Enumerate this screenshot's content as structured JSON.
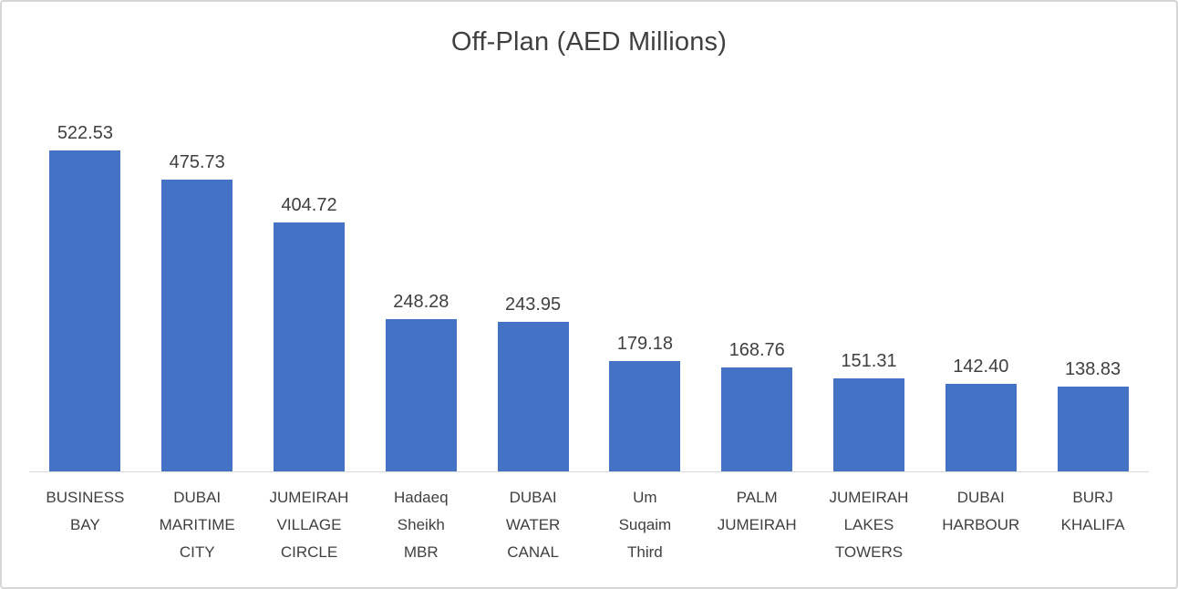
{
  "chart_data": {
    "type": "bar",
    "title": "Off-Plan (AED Millions)",
    "categories": [
      "BUSINESS BAY",
      "DUBAI MARITIME CITY",
      "JUMEIRAH VILLAGE CIRCLE",
      "Hadaeq Sheikh MBR",
      "DUBAI WATER CANAL",
      "Um Suqaim Third",
      "PALM JUMEIRAH",
      "JUMEIRAH LAKES TOWERS",
      "DUBAI HARBOUR",
      "BURJ KHALIFA"
    ],
    "category_lines": [
      [
        "BUSINESS",
        "BAY"
      ],
      [
        "DUBAI",
        "MARITIME",
        "CITY"
      ],
      [
        "JUMEIRAH",
        "VILLAGE",
        "CIRCLE"
      ],
      [
        "Hadaeq",
        "Sheikh",
        "MBR"
      ],
      [
        "DUBAI",
        "WATER",
        "CANAL"
      ],
      [
        "Um",
        "Suqaim",
        "Third"
      ],
      [
        "PALM",
        "JUMEIRAH"
      ],
      [
        "JUMEIRAH",
        "LAKES",
        "TOWERS"
      ],
      [
        "DUBAI",
        "HARBOUR"
      ],
      [
        "BURJ",
        "KHALIFA"
      ]
    ],
    "values": [
      522.53,
      475.73,
      404.72,
      248.28,
      243.95,
      179.18,
      168.76,
      151.31,
      142.4,
      138.83
    ],
    "value_labels": [
      "522.53",
      "475.73",
      "404.72",
      "248.28",
      "243.95",
      "179.18",
      "168.76",
      "151.31",
      "142.40",
      "138.83"
    ],
    "bar_color": "#4472C4",
    "xlabel": "",
    "ylabel": "",
    "ylim": [
      0,
      600
    ],
    "grid": false,
    "legend": false
  }
}
